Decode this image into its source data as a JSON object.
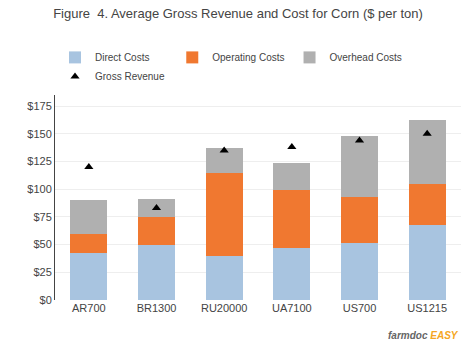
{
  "chart_data": {
    "type": "bar",
    "stacked": true,
    "title": "Figure  4. Average Gross Revenue and Cost for Corn ($ per ton)",
    "categories": [
      "AR700",
      "BR1300",
      "RU20000",
      "UA7100",
      "US700",
      "US1215"
    ],
    "series": [
      {
        "name": "Direct Costs",
        "color": "#a8c4e0",
        "values": [
          42,
          50,
          40,
          47,
          51,
          68
        ]
      },
      {
        "name": "Operating Costs",
        "color": "#f07830",
        "values": [
          18,
          25,
          75,
          52,
          42,
          37
        ]
      },
      {
        "name": "Overhead Costs",
        "color": "#b0b0b0",
        "values": [
          30,
          16,
          22,
          25,
          55,
          57
        ]
      },
      {
        "name": "Gross Revenue",
        "type": "scatter",
        "marker": "triangle-up",
        "color": "#000000",
        "values": [
          120,
          83,
          135,
          138,
          144,
          150
        ]
      }
    ],
    "ylim": [
      0,
      185
    ],
    "yticks": [
      {
        "value": 0,
        "label": "$0"
      },
      {
        "value": 25,
        "label": "$25"
      },
      {
        "value": 50,
        "label": "$50"
      },
      {
        "value": 75,
        "label": "$75"
      },
      {
        "value": 100,
        "label": "$100"
      },
      {
        "value": 125,
        "label": "$125"
      },
      {
        "value": 150,
        "label": "$150"
      },
      {
        "value": 175,
        "label": "$175"
      }
    ],
    "grid": true,
    "legend": "top",
    "annotations": [
      {
        "text": "farmdoc",
        "color": "#666666"
      },
      {
        "text": "EASY",
        "color": "#f5a623"
      }
    ]
  }
}
